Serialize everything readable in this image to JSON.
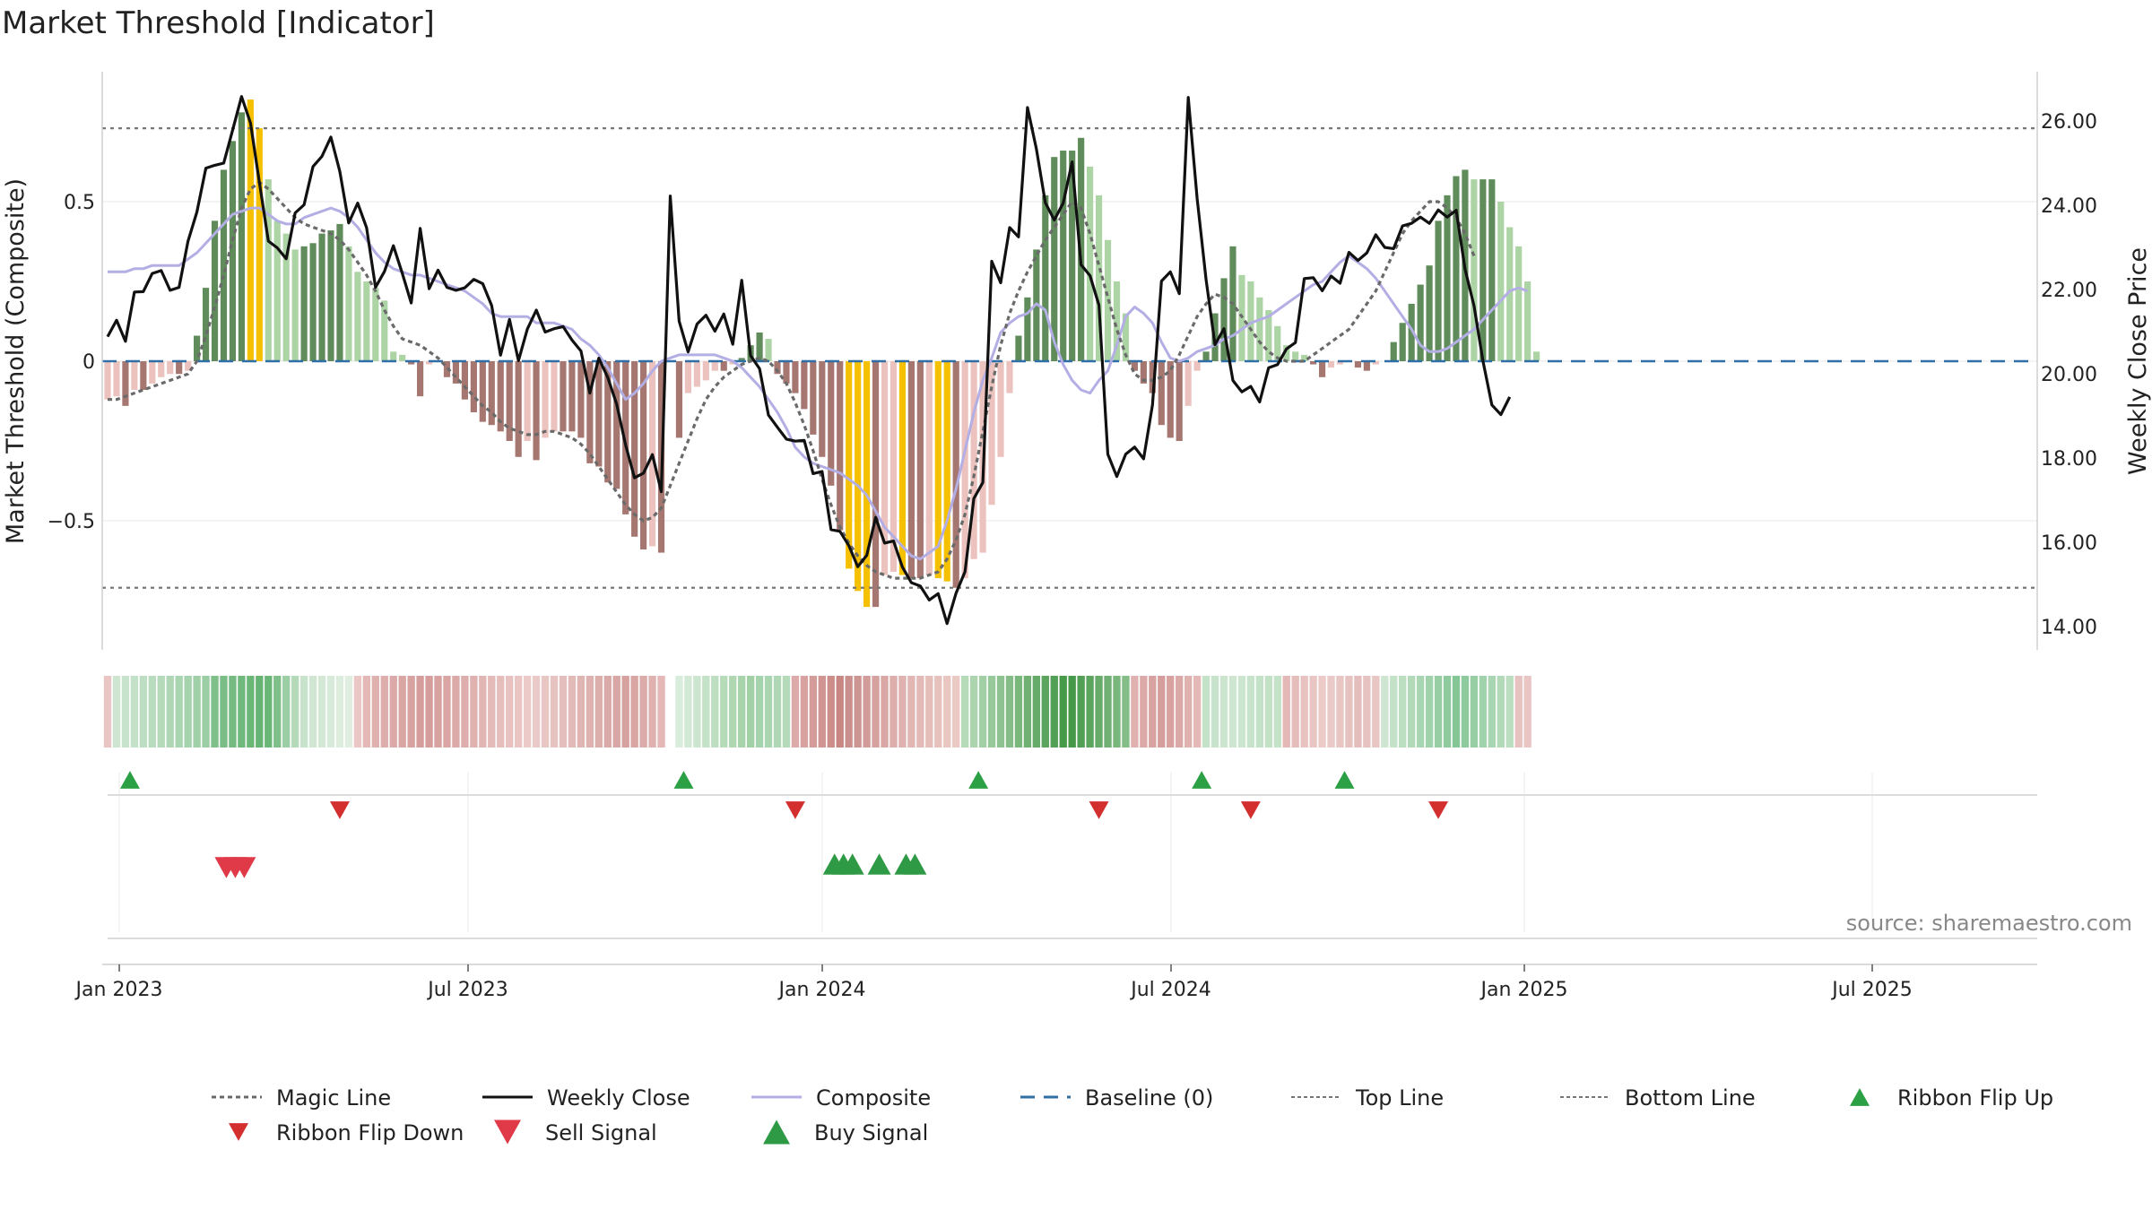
{
  "title": "Market Threshold [Indicator]",
  "source": "source: sharemaestro.com",
  "colors": {
    "pos_dark": "#5f8c5a",
    "pos_light": "#acd4a4",
    "neg_dark": "#a57770",
    "neg_light": "#ebc2bd",
    "extreme": "#f5c000",
    "close": "#111111",
    "composite": "#b3aee4",
    "magic": "#6a6a6a",
    "baseline": "#2f6fa6",
    "band": "#777777",
    "flip_up": "#2ca045",
    "flip_down": "#d42f2f",
    "sell": "#e03a48",
    "buy": "#2e9a45"
  },
  "chart_data": {
    "type": "bar",
    "title": "Market Threshold [Indicator]",
    "ylabel_left": "Market Threshold (Composite)",
    "ylabel_right": "Weekly Close Price",
    "ylim_left": [
      -0.9,
      0.9
    ],
    "ylim_right": [
      12.83,
      27.52
    ],
    "yticks_left": [
      {
        "v": 0.5,
        "label": "0.5"
      },
      {
        "v": 0,
        "label": "0"
      },
      {
        "v": -0.5,
        "label": "−0.5"
      }
    ],
    "yticks_right": [
      "14.00",
      "16.00",
      "18.00",
      "20.00",
      "22.00",
      "24.00",
      "26.00"
    ],
    "x_ticks": [
      "Jan 2023",
      "Jul 2023",
      "Jan 2024",
      "Jul 2024",
      "Jan 2025",
      "Jul 2025"
    ],
    "top_line": 0.73,
    "bottom_line": -0.71,
    "baseline": 0,
    "composite_bars": [
      -0.12,
      -0.11,
      -0.14,
      -0.09,
      -0.09,
      -0.07,
      -0.05,
      -0.04,
      -0.04,
      -0.03,
      0.08,
      0.23,
      0.44,
      0.6,
      0.69,
      0.78,
      0.82,
      0.73,
      0.57,
      0.44,
      0.4,
      0.35,
      0.36,
      0.37,
      0.4,
      0.41,
      0.43,
      0.36,
      0.28,
      0.25,
      0.23,
      0.19,
      0.03,
      0.02,
      -0.01,
      -0.11,
      -0.01,
      0,
      -0.05,
      -0.07,
      -0.12,
      -0.16,
      -0.19,
      -0.2,
      -0.22,
      -0.25,
      -0.3,
      -0.25,
      -0.31,
      -0.24,
      -0.22,
      -0.22,
      -0.22,
      -0.24,
      -0.32,
      -0.33,
      -0.38,
      -0.4,
      -0.48,
      -0.55,
      -0.59,
      -0.58,
      -0.6,
      0,
      -0.24,
      -0.1,
      -0.08,
      -0.06,
      -0.03,
      -0.03,
      -0.01,
      0.01,
      0.05,
      0.09,
      0.07,
      -0.04,
      -0.07,
      -0.1,
      -0.15,
      -0.23,
      -0.3,
      -0.39,
      -0.53,
      -0.65,
      -0.72,
      -0.77,
      -0.77,
      -0.67,
      -0.66,
      -0.67,
      -0.68,
      -0.68,
      -0.67,
      -0.68,
      -0.69,
      -0.71,
      -0.68,
      -0.62,
      -0.6,
      -0.45,
      -0.3,
      -0.1,
      0.08,
      0.2,
      0.35,
      0.52,
      0.64,
      0.66,
      0.66,
      0.7,
      0.61,
      0.52,
      0.38,
      0.25,
      0.15,
      -0.03,
      -0.07,
      -0.1,
      -0.2,
      -0.24,
      -0.25,
      -0.14,
      -0.03,
      0.03,
      0.15,
      0.26,
      0.36,
      0.27,
      0.25,
      0.2,
      0.16,
      0.11,
      0.05,
      0.03,
      0.02,
      -0.01,
      -0.05,
      -0.02,
      -0.01,
      0,
      -0.02,
      -0.03,
      -0.01,
      0,
      0.06,
      0.12,
      0.18,
      0.24,
      0.3,
      0.44,
      0.52,
      0.58,
      0.6,
      0.57,
      0.57,
      0.57,
      0.5,
      0.42,
      0.36,
      0.25,
      0.03
    ],
    "extreme_bars": [
      16,
      17,
      83,
      84,
      85,
      89,
      93,
      94
    ],
    "weekly_close": [
      20.88,
      21.27,
      20.77,
      21.94,
      21.95,
      22.38,
      22.45,
      21.98,
      22.05,
      23.14,
      23.84,
      24.88,
      24.95,
      25.0,
      25.78,
      26.58,
      25.95,
      24.54,
      23.15,
      22.99,
      22.73,
      23.82,
      24.01,
      24.92,
      25.16,
      25.62,
      24.8,
      23.58,
      24.05,
      23.47,
      22.05,
      22.43,
      23.04,
      22.38,
      21.68,
      23.45,
      22.02,
      22.46,
      22.05,
      21.98,
      22.04,
      22.24,
      22.14,
      21.62,
      20.44,
      21.29,
      20.31,
      21.06,
      21.51,
      20.99,
      21.07,
      21.12,
      20.8,
      20.54,
      19.54,
      20.37,
      19.91,
      19.28,
      18.31,
      17.53,
      17.64,
      18.08,
      17.2,
      24.22,
      21.25,
      20.52,
      21.18,
      21.39,
      21.01,
      21.42,
      20.7,
      22.22,
      20.43,
      20.12,
      19.02,
      18.73,
      18.45,
      18.4,
      18.42,
      17.63,
      17.68,
      16.3,
      16.26,
      15.92,
      15.42,
      15.69,
      16.59,
      15.98,
      16.03,
      15.41,
      15.04,
      14.96,
      14.63,
      14.78,
      14.07,
      14.79,
      15.3,
      17.04,
      17.42,
      22.67,
      22.16,
      23.47,
      23.25,
      26.32,
      25.34,
      24.06,
      23.65,
      24.05,
      25.03,
      22.59,
      22.33,
      21.63,
      18.09,
      17.56,
      18.09,
      18.26,
      17.98,
      19.26,
      22.2,
      22.42,
      21.9,
      26.56,
      24.16,
      22.23,
      20.69,
      21.07,
      19.84,
      19.57,
      19.7,
      19.33,
      20.14,
      20.22,
      20.59,
      20.74,
      22.26,
      22.28,
      21.97,
      22.32,
      22.15,
      22.88,
      22.69,
      22.87,
      23.3,
      23.0,
      22.97,
      23.51,
      23.57,
      23.72,
      23.57,
      23.89,
      23.72,
      23.88,
      22.48,
      21.61,
      20.31,
      19.26,
      19.03,
      19.45
    ],
    "composite_line": [
      0.28,
      0.28,
      0.28,
      0.29,
      0.29,
      0.3,
      0.3,
      0.3,
      0.3,
      0.32,
      0.34,
      0.37,
      0.4,
      0.43,
      0.46,
      0.47,
      0.48,
      0.48,
      0.46,
      0.44,
      0.43,
      0.43,
      0.45,
      0.46,
      0.47,
      0.48,
      0.47,
      0.45,
      0.42,
      0.38,
      0.34,
      0.31,
      0.29,
      0.28,
      0.27,
      0.27,
      0.26,
      0.25,
      0.24,
      0.23,
      0.22,
      0.2,
      0.18,
      0.15,
      0.14,
      0.14,
      0.14,
      0.14,
      0.12,
      0.12,
      0.12,
      0.11,
      0.1,
      0.07,
      0.05,
      0.02,
      -0.02,
      -0.07,
      -0.12,
      -0.1,
      -0.07,
      -0.03,
      0,
      0.01,
      0.02,
      0.02,
      0.02,
      0.02,
      0.02,
      0.01,
      0,
      -0.02,
      -0.05,
      -0.08,
      -0.12,
      -0.16,
      -0.21,
      -0.27,
      -0.3,
      -0.32,
      -0.33,
      -0.34,
      -0.35,
      -0.37,
      -0.39,
      -0.42,
      -0.47,
      -0.52,
      -0.55,
      -0.58,
      -0.61,
      -0.62,
      -0.6,
      -0.58,
      -0.5,
      -0.4,
      -0.28,
      -0.16,
      -0.06,
      0.01,
      0.09,
      0.12,
      0.14,
      0.15,
      0.18,
      0.16,
      0.06,
      -0.01,
      -0.06,
      -0.09,
      -0.1,
      -0.06,
      -0.03,
      0.05,
      0.14,
      0.17,
      0.15,
      0.12,
      0.06,
      0.01,
      0,
      0.01,
      0.03,
      0.04,
      0.05,
      0.07,
      0.08,
      0.1,
      0.12,
      0.13,
      0.14,
      0.16,
      0.18,
      0.2,
      0.22,
      0.24,
      0.25,
      0.28,
      0.31,
      0.33,
      0.31,
      0.29,
      0.26,
      0.22,
      0.18,
      0.14,
      0.1,
      0.05,
      0.03,
      0.03,
      0.04,
      0.06,
      0.08,
      0.1,
      0.13,
      0.16,
      0.19,
      0.22,
      0.23,
      0.22
    ],
    "magic_line": [
      -0.12,
      -0.12,
      -0.11,
      -0.1,
      -0.09,
      -0.08,
      -0.07,
      -0.06,
      -0.05,
      -0.04,
      0,
      0.08,
      0.17,
      0.27,
      0.38,
      0.48,
      0.54,
      0.56,
      0.54,
      0.51,
      0.48,
      0.45,
      0.43,
      0.42,
      0.41,
      0.4,
      0.38,
      0.35,
      0.31,
      0.27,
      0.22,
      0.16,
      0.11,
      0.07,
      0.06,
      0.05,
      0.03,
      0.01,
      -0.02,
      -0.05,
      -0.08,
      -0.11,
      -0.14,
      -0.16,
      -0.19,
      -0.21,
      -0.22,
      -0.23,
      -0.23,
      -0.22,
      -0.22,
      -0.23,
      -0.24,
      -0.26,
      -0.29,
      -0.33,
      -0.37,
      -0.41,
      -0.45,
      -0.48,
      -0.5,
      -0.49,
      -0.46,
      -0.39,
      -0.32,
      -0.25,
      -0.18,
      -0.12,
      -0.08,
      -0.05,
      -0.03,
      -0.01,
      0,
      0.01,
      0,
      -0.03,
      -0.07,
      -0.13,
      -0.2,
      -0.28,
      -0.37,
      -0.45,
      -0.52,
      -0.57,
      -0.61,
      -0.64,
      -0.66,
      -0.67,
      -0.68,
      -0.68,
      -0.68,
      -0.68,
      -0.67,
      -0.66,
      -0.62,
      -0.56,
      -0.48,
      -0.36,
      -0.22,
      -0.08,
      0.05,
      0.15,
      0.22,
      0.28,
      0.33,
      0.38,
      0.42,
      0.46,
      0.5,
      0.48,
      0.4,
      0.3,
      0.2,
      0.1,
      0.02,
      -0.04,
      -0.06,
      -0.06,
      -0.05,
      -0.03,
      0.02,
      0.08,
      0.14,
      0.18,
      0.21,
      0.2,
      0.18,
      0.14,
      0.1,
      0.06,
      0.03,
      0.01,
      0,
      0,
      0,
      0.02,
      0.04,
      0.06,
      0.08,
      0.1,
      0.14,
      0.18,
      0.22,
      0.28,
      0.34,
      0.4,
      0.44,
      0.47,
      0.5,
      0.5,
      0.48,
      0.45,
      0.4,
      0.33
    ],
    "ribbon": {
      "colors": [
        "#e9c5c4",
        "#cde5d1",
        "#c8e3cc",
        "#c3e1c8",
        "#bedec3",
        "#b9dcbf",
        "#b4daba",
        "#afd7b6",
        "#aad5b1",
        "#a5d3ad",
        "#a0d0a8",
        "#9bcea4",
        "#7fc08a",
        "#7abd86",
        "#75bb81",
        "#70b97d",
        "#6bb778",
        "#66b474",
        "#6ab676",
        "#7fc08a",
        "#9bcea4",
        "#b4daba",
        "#c8e3cc",
        "#d0e6d3",
        "#d4e8d6",
        "#d8eada",
        "#dcecdd",
        "#e0eee1",
        "#eac6c5",
        "#e3b8b6",
        "#dfb2b0",
        "#ddaeac",
        "#dbaaa8",
        "#d9a6a4",
        "#d7a2a0",
        "#d59e9c",
        "#d59e9c",
        "#d7a2a0",
        "#d9a6a4",
        "#dbaaa8",
        "#ddaeac",
        "#dfb2b0",
        "#e1b6b4",
        "#e3bab8",
        "#e5bebc",
        "#e7c2c0",
        "#e9c6c4",
        "#ebcac8",
        "#eacac8",
        "#e8c6c4",
        "#e6c2c0",
        "#e4bebc",
        "#e2bab8",
        "#e0b6b4",
        "#deb2b0",
        "#dcaeac",
        "#daaaa8",
        "#d8a6a4",
        "#d6a2a0",
        "#d9a6a4",
        "#dcacaa",
        "#dfb2b0",
        "#e3b8b6",
        "#e7c2c0",
        "#d9eddc",
        "#d2e9d5",
        "#cbe5ce",
        "#c4e2c7",
        "#bddec0",
        "#b6dbb9",
        "#afd7b2",
        "#a8d4ab",
        "#a1d0a4",
        "#a5d3ad",
        "#aad5b1",
        "#afd7b6",
        "#b4daba",
        "#dcaaa8",
        "#d8a2a0",
        "#d49c99",
        "#d09592",
        "#cd8e8b",
        "#c98784",
        "#c9908d",
        "#cd9693",
        "#d19c99",
        "#d5a29f",
        "#d9a8a5",
        "#ddaeab",
        "#dfb2af",
        "#e1b6b3",
        "#e3bab7",
        "#e5beb9",
        "#e7c2bc",
        "#e9c6c0",
        "#ebcac4",
        "#b6dbb9",
        "#acd5af",
        "#a2cfa5",
        "#98c99b",
        "#8ec391",
        "#84bd87",
        "#7ab77d",
        "#70b173",
        "#66ab69",
        "#5ca55f",
        "#52a055",
        "#489a4b",
        "#47994a",
        "#52a055",
        "#5ca55f",
        "#66ab69",
        "#70b173",
        "#7ab77d",
        "#84bd87",
        "#dfb2b0",
        "#dbaaa8",
        "#d7a2a0",
        "#d59e9c",
        "#d7a2a0",
        "#dbaaa8",
        "#dfb2b0",
        "#e3b8b6",
        "#c4e2c7",
        "#c8e3cc",
        "#cbe5ce",
        "#cde5d1",
        "#cbe5ce",
        "#c8e3cc",
        "#c4e2c7",
        "#c2e1c5",
        "#c4e2c7",
        "#e3b8b6",
        "#e5bebc",
        "#e7c2c0",
        "#e9c6c4",
        "#ebcac8",
        "#eacac8",
        "#e8c6c4",
        "#e6c2c0",
        "#e4bebc",
        "#e6c2c0",
        "#e8c6c4",
        "#cde5d1",
        "#c4e2c7",
        "#bbdec0",
        "#b2dab9",
        "#a9d6b2",
        "#a0d2ab",
        "#97cea4",
        "#8eca9d",
        "#85c696",
        "#8eca9d",
        "#97cea4",
        "#a0d2ab",
        "#a9d6b2",
        "#b2dab9",
        "#bbdec0",
        "#e6c2c0",
        "#e9c5c4"
      ],
      "gap_index": 63
    },
    "ribbon_flip_up": [
      1,
      63,
      96,
      121,
      137
    ],
    "ribbon_flip_down": [
      26,
      77,
      111,
      128,
      149
    ],
    "sell_signals": [
      14,
      15,
      16
    ],
    "buy_signals": [
      81,
      82,
      83,
      86,
      89,
      90
    ],
    "legend": [
      {
        "label": "Magic Line",
        "type": "dotted-line",
        "color": "#6a6a6a"
      },
      {
        "label": "Weekly Close",
        "type": "solid-line",
        "color": "#111111"
      },
      {
        "label": "Composite",
        "type": "solid-line",
        "color": "#b3aee4"
      },
      {
        "label": "Baseline (0)",
        "type": "dashed-line",
        "color": "#2f6fa6"
      },
      {
        "label": "Top Line",
        "type": "fine-dotted-line",
        "color": "#777777"
      },
      {
        "label": "Bottom Line",
        "type": "fine-dotted-line",
        "color": "#777777"
      },
      {
        "label": "Ribbon Flip Up",
        "type": "triangle-up",
        "color": "#2ca045"
      },
      {
        "label": "Ribbon Flip Down",
        "type": "triangle-down",
        "color": "#d42f2f"
      },
      {
        "label": "Sell Signal",
        "type": "triangle-down-large",
        "color": "#e03a48"
      },
      {
        "label": "Buy Signal",
        "type": "triangle-up-large",
        "color": "#2e9a45"
      }
    ]
  }
}
